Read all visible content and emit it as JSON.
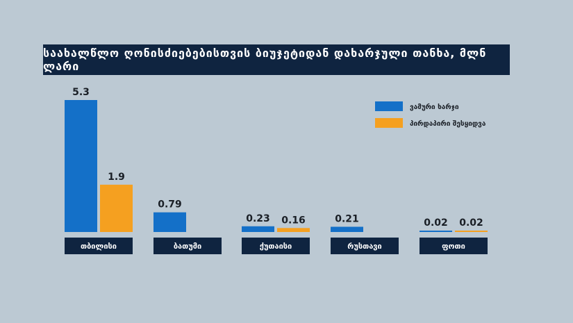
{
  "chart_data": {
    "type": "bar",
    "title": "საახალწლო ღონისძიებებისთვის ბიუჯეტიდან დახარჯული თანხა, მლნ ლარი",
    "categories": [
      "თბილისი",
      "ბათუმი",
      "ქუთაისი",
      "რუსთავი",
      "ფოთი"
    ],
    "series": [
      {
        "name": "ვამური ხარჯი",
        "values": [
          5.3,
          0.79,
          0.23,
          0.21,
          0.02
        ],
        "labels": [
          "5.3",
          "0.79",
          "0.23",
          "0.21",
          "0.02"
        ]
      },
      {
        "name": "პირდაპირი შესყიდვა",
        "values": [
          1.9,
          null,
          0.16,
          null,
          0.02
        ],
        "labels": [
          "1.9",
          "",
          "0.16",
          "",
          "0.02"
        ]
      }
    ],
    "ylim": [
      0,
      5.3
    ],
    "grid": false,
    "legend_position": "top-right",
    "colors": {
      "series0": "#1470c8",
      "series1": "#f5a020",
      "category_box": "#0f2440",
      "background": "#bcc9d3"
    }
  }
}
